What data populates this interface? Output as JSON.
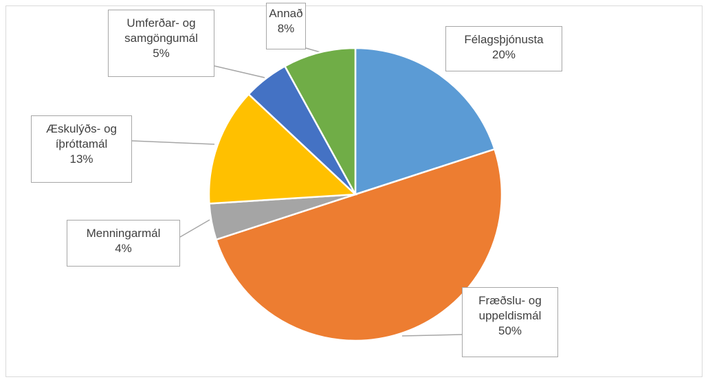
{
  "chart_data": {
    "type": "pie",
    "categories": [
      "Félagsþjónusta",
      "Fræðslu- og uppeldismál",
      "Menningarmál",
      "Æskulýðs- og íþróttamál",
      "Umferðar- og samgöngumál",
      "Annað"
    ],
    "values": [
      20,
      50,
      4,
      13,
      5,
      8
    ],
    "value_labels": [
      "20%",
      "50%",
      "4%",
      "13%",
      "5%",
      "8%"
    ],
    "colors": [
      "#5b9bd5",
      "#ed7d31",
      "#a5a5a5",
      "#ffc000",
      "#4472c4",
      "#70ad47"
    ]
  }
}
